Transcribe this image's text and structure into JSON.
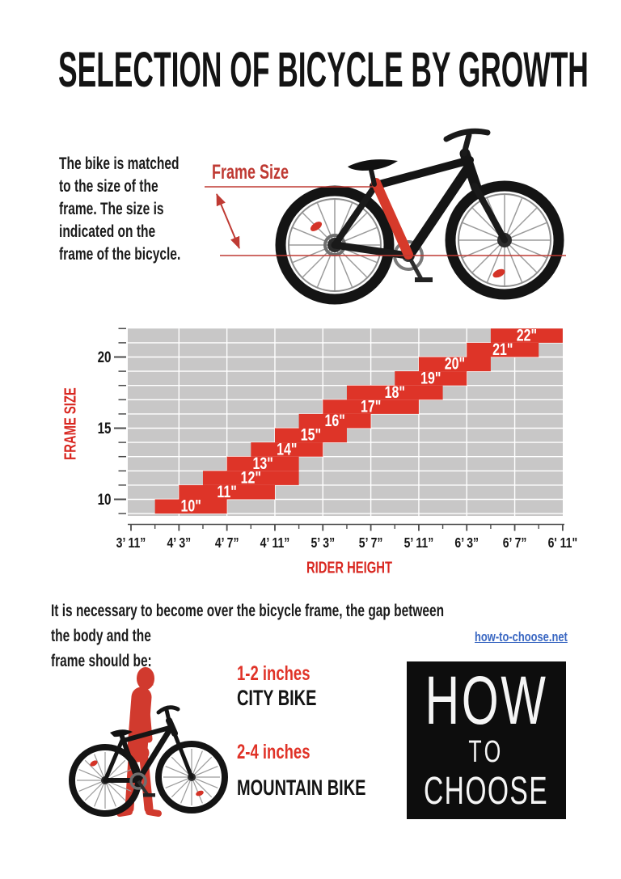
{
  "page": {
    "title": "SELECTION OF BICYCLE BY GROWTH"
  },
  "intro": {
    "text_lines": [
      "The bike is matched",
      "to the size of the",
      "frame. The size is",
      "indicated on the",
      "frame of the bicycle."
    ]
  },
  "annotation": {
    "label": "Frame Size"
  },
  "chart_data": {
    "type": "bar",
    "variant": "floating-step-bars",
    "title": "",
    "xlabel": "RIDER HEIGHT",
    "ylabel": "FRAME SIZE",
    "y_unit": "frame size, inches",
    "x_unit": "rider height, feet and inches",
    "x_ticks": [
      {
        "inches": 47,
        "label": "3’ 11”"
      },
      {
        "inches": 51,
        "label": "4’ 3”"
      },
      {
        "inches": 55,
        "label": "4’ 7”"
      },
      {
        "inches": 59,
        "label": "4’ 11”"
      },
      {
        "inches": 63,
        "label": "5’ 3”"
      },
      {
        "inches": 67,
        "label": "5’ 7”"
      },
      {
        "inches": 71,
        "label": "5’ 11”"
      },
      {
        "inches": 75,
        "label": "6’ 3”"
      },
      {
        "inches": 79,
        "label": "6’ 7”"
      },
      {
        "inches": 83,
        "label": "6' 11\""
      }
    ],
    "x_minor_ticks_inches": [
      49,
      53,
      57,
      61,
      65,
      69,
      73,
      77,
      81
    ],
    "y_major_ticks": [
      10,
      15,
      20
    ],
    "y_minor_ticks": [
      9,
      11,
      12,
      13,
      14,
      16,
      17,
      18,
      19,
      21,
      22
    ],
    "y_range": [
      8.8,
      22
    ],
    "x_range_inches": [
      46.7,
      83
    ],
    "grid": true,
    "legend": null,
    "bars": [
      {
        "label": "10\"",
        "frame_size_in": 10,
        "rider_min_in": 49,
        "rider_max_in": 55
      },
      {
        "label": "11\"",
        "frame_size_in": 11,
        "rider_min_in": 51,
        "rider_max_in": 59
      },
      {
        "label": "12\"",
        "frame_size_in": 12,
        "rider_min_in": 53,
        "rider_max_in": 61
      },
      {
        "label": "13\"",
        "frame_size_in": 13,
        "rider_min_in": 55,
        "rider_max_in": 61
      },
      {
        "label": "14\"",
        "frame_size_in": 14,
        "rider_min_in": 57,
        "rider_max_in": 63
      },
      {
        "label": "15\"",
        "frame_size_in": 15,
        "rider_min_in": 59,
        "rider_max_in": 65
      },
      {
        "label": "16\"",
        "frame_size_in": 16,
        "rider_min_in": 61,
        "rider_max_in": 67
      },
      {
        "label": "17\"",
        "frame_size_in": 17,
        "rider_min_in": 63,
        "rider_max_in": 71
      },
      {
        "label": "18\"",
        "frame_size_in": 18,
        "rider_min_in": 65,
        "rider_max_in": 73
      },
      {
        "label": "19\"",
        "frame_size_in": 19,
        "rider_min_in": 69,
        "rider_max_in": 75
      },
      {
        "label": "20\"",
        "frame_size_in": 20,
        "rider_min_in": 71,
        "rider_max_in": 77
      },
      {
        "label": "21\"",
        "frame_size_in": 21,
        "rider_min_in": 75,
        "rider_max_in": 81
      },
      {
        "label": "22\"",
        "frame_size_in": 22,
        "rider_min_in": 77,
        "rider_max_in": 83
      }
    ],
    "bar_color": "#de3428",
    "bar_label_color": "#ffffff",
    "plot_bg": "#c8c7c7",
    "grid_color": "#ffffff",
    "axis_color": "#4d4d4d",
    "tick_label_color": "#161616"
  },
  "footer": {
    "text_lines": [
      "It is necessary to become over the bicycle frame, the gap between the body and the",
      "frame should be:"
    ],
    "link": "how-to-choose.net"
  },
  "recommendations": [
    {
      "gap": "1-2 inches",
      "bike": "CITY BIKE"
    },
    {
      "gap": "2-4 inches",
      "bike": "MOUNTAIN BIKE"
    }
  ],
  "logo": {
    "lines": [
      "HOW",
      "TO",
      "CHOOSE"
    ]
  },
  "colors": {
    "accent_red": "#de3428",
    "annotation_red": "#bf3a33",
    "axis_title_red": "#d8261f",
    "link_blue": "#3a67c2",
    "logo_bg": "#0d0d0d"
  }
}
